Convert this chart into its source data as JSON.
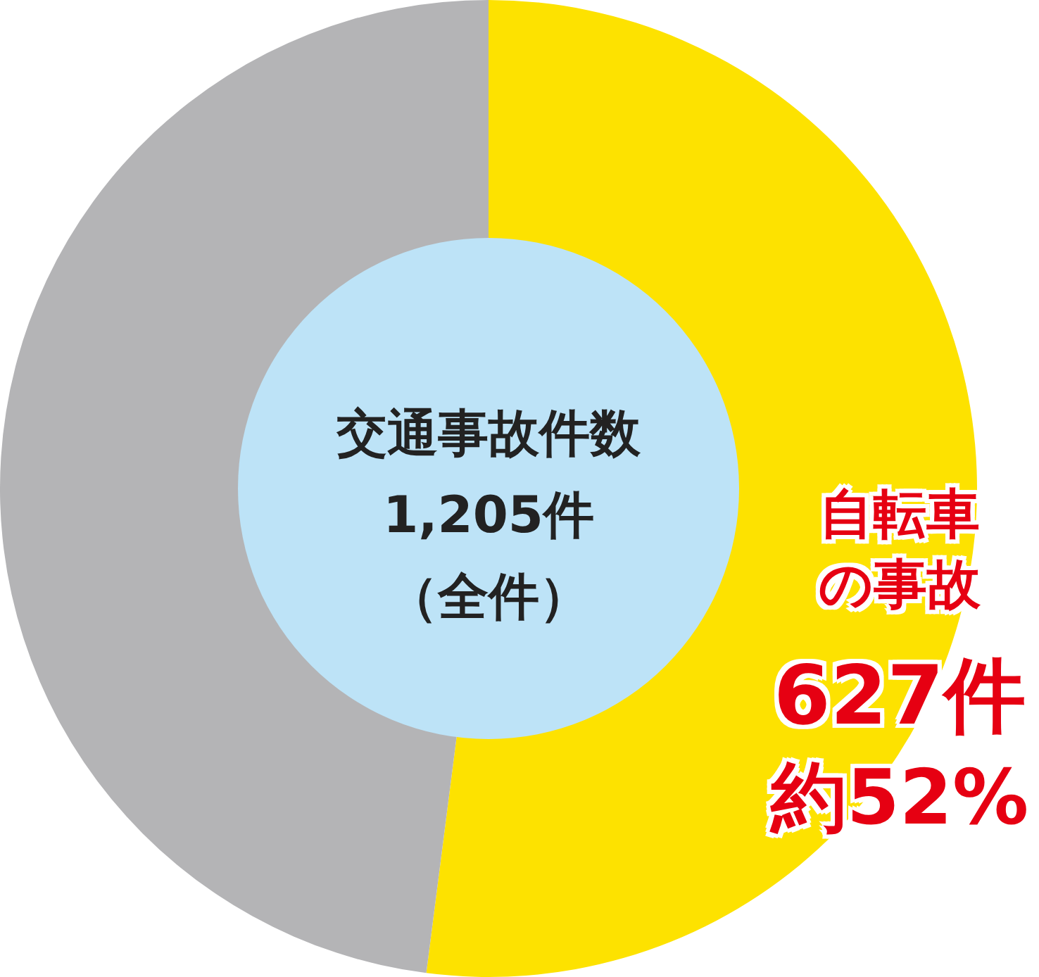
{
  "chart_data": {
    "type": "donut",
    "categories": [
      "自転車の事故",
      null
    ],
    "values": [
      627,
      578
    ],
    "colors": [
      "#fde200",
      "#b4b4b6"
    ],
    "value_labels": [
      "627件",
      null
    ],
    "annotations": [
      "交通事故件数",
      "1,205件",
      "（全件）",
      "約52%"
    ],
    "legend": false
  }
}
